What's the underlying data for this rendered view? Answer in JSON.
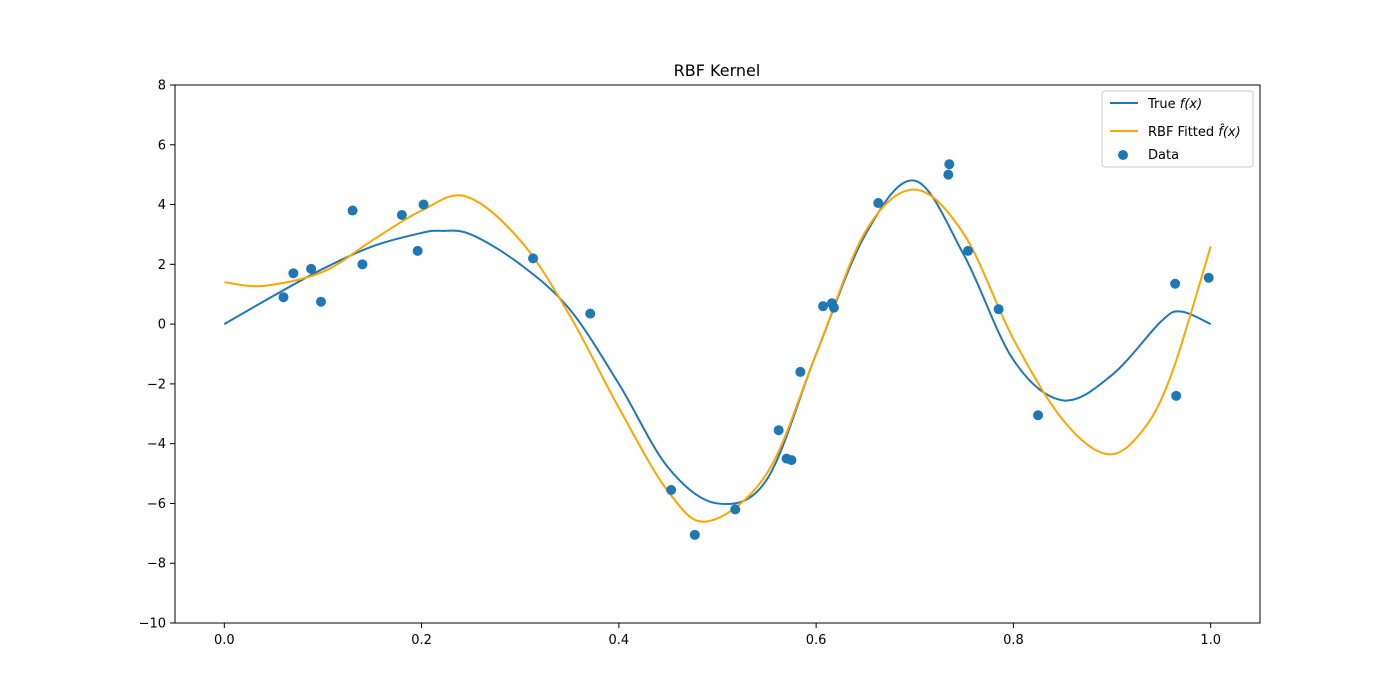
{
  "chart_data": {
    "type": "line",
    "title": "RBF Kernel",
    "xlabel": "",
    "ylabel": "",
    "xlim": [
      -0.05,
      1.05
    ],
    "ylim": [
      -10,
      8
    ],
    "x_ticks": [
      0.0,
      0.2,
      0.4,
      0.6,
      0.8,
      1.0
    ],
    "x_tick_labels": [
      "0.0",
      "0.2",
      "0.4",
      "0.6",
      "0.8",
      "1.0"
    ],
    "y_ticks": [
      -10,
      -8,
      -6,
      -4,
      -2,
      0,
      2,
      4,
      6,
      8
    ],
    "y_tick_labels": [
      "−10",
      "−8",
      "−6",
      "−4",
      "−2",
      "0",
      "2",
      "4",
      "6",
      "8"
    ],
    "grid": false,
    "legend_position": "top-right",
    "colors": {
      "true": "#1f77b4",
      "fitted": "#ffa500",
      "data": "#1f77b4"
    },
    "series": [
      {
        "name": "True f(x)",
        "kind": "line",
        "x": [
          0.0,
          0.05,
          0.1,
          0.15,
          0.2,
          0.22,
          0.25,
          0.3,
          0.35,
          0.4,
          0.45,
          0.5,
          0.55,
          0.6,
          0.65,
          0.7,
          0.75,
          0.8,
          0.85,
          0.9,
          0.95,
          0.97,
          1.0
        ],
        "y": [
          0.0,
          0.95,
          1.85,
          2.6,
          3.05,
          3.12,
          3.0,
          2.0,
          0.5,
          -2.0,
          -4.8,
          -6.0,
          -5.2,
          -1.0,
          3.0,
          4.8,
          2.3,
          -1.2,
          -2.55,
          -1.7,
          0.1,
          0.42,
          0.0
        ]
      },
      {
        "name": "RBF Fitted f̂(x)",
        "kind": "line",
        "x": [
          0.0,
          0.04,
          0.1,
          0.15,
          0.2,
          0.245,
          0.3,
          0.35,
          0.4,
          0.45,
          0.49,
          0.55,
          0.6,
          0.65,
          0.7,
          0.75,
          0.8,
          0.85,
          0.895,
          0.93,
          0.96,
          1.0
        ],
        "y": [
          1.4,
          1.28,
          1.75,
          2.8,
          3.8,
          4.27,
          2.8,
          0.3,
          -2.8,
          -5.6,
          -6.6,
          -5.0,
          -1.0,
          3.1,
          4.5,
          3.0,
          -0.5,
          -3.2,
          -4.35,
          -3.6,
          -1.7,
          2.6
        ]
      },
      {
        "name": "Data",
        "kind": "scatter",
        "x": [
          0.06,
          0.07,
          0.088,
          0.098,
          0.13,
          0.14,
          0.18,
          0.196,
          0.202,
          0.313,
          0.371,
          0.453,
          0.477,
          0.518,
          0.562,
          0.57,
          0.575,
          0.584,
          0.607,
          0.616,
          0.618,
          0.663,
          0.734,
          0.735,
          0.754,
          0.785,
          0.825,
          0.964,
          0.965,
          0.998
        ],
        "y": [
          0.9,
          1.7,
          1.85,
          0.75,
          3.8,
          2.0,
          3.65,
          2.45,
          4.0,
          2.2,
          0.35,
          -5.55,
          -7.05,
          -6.2,
          -3.55,
          -4.5,
          -4.55,
          -1.6,
          0.6,
          0.7,
          0.55,
          4.05,
          5.0,
          5.35,
          2.45,
          0.5,
          -3.05,
          1.35,
          -2.4,
          1.55
        ]
      }
    ]
  },
  "legend": {
    "true_label_text": "True ",
    "true_label_math": "f(x)",
    "fitted_label_text": "RBF Fitted ",
    "fitted_label_math": "f̂(x)",
    "data_label": "Data"
  }
}
